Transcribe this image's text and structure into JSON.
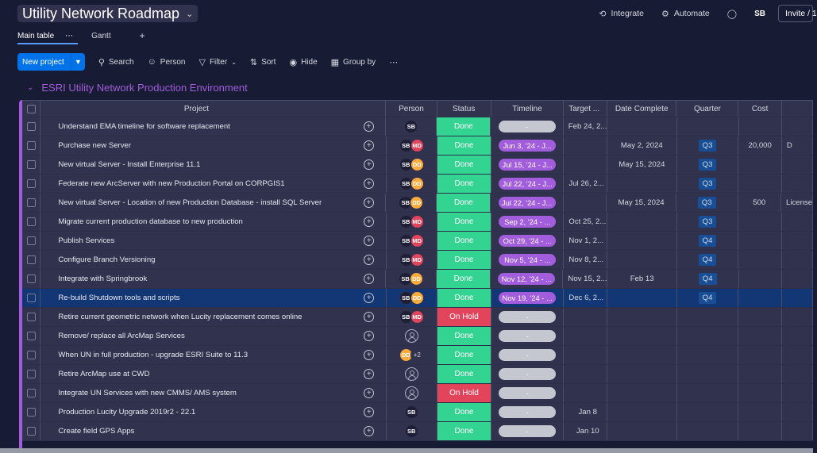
{
  "header": {
    "title": "Utility Network Roadmap",
    "integrate": "Integrate",
    "automate": "Automate",
    "user_initials": "SB",
    "invite": "Invite / 1"
  },
  "tabs": [
    {
      "label": "Main table"
    },
    {
      "label": "Gantt"
    }
  ],
  "toolbar": {
    "new_project": "New project",
    "search": "Search",
    "person": "Person",
    "filter": "Filter",
    "sort": "Sort",
    "hide": "Hide",
    "group_by": "Group by"
  },
  "group": {
    "title": "ESRI Utility Network Production Environment",
    "color": "#a25ddc"
  },
  "columns": {
    "project": "Project",
    "person": "Person",
    "status": "Status",
    "timeline": "Timeline",
    "target": "Target ...",
    "date_complete": "Date Complete",
    "quarter": "Quarter",
    "cost": "Cost"
  },
  "colors": {
    "done": "#33d391",
    "on_hold": "#e2445c",
    "timeline": "#a25ddc",
    "accent": "#0073ea"
  },
  "rows": [
    {
      "project": "Understand EMA timeline for software replacement",
      "people": [
        "SB"
      ],
      "status": "Done",
      "timeline": "-",
      "target": "Feb 24, 2...",
      "date_complete": "",
      "quarter": "",
      "cost": "",
      "extra": ""
    },
    {
      "project": "Purchase new Server",
      "people": [
        "SB",
        "MD"
      ],
      "status": "Done",
      "timeline": "Jun 3, '24 - J...",
      "target": "",
      "date_complete": "May 2, 2024",
      "quarter": "Q3",
      "cost": "20,000",
      "extra": "D"
    },
    {
      "project": "New virtual Server - Install Enterprise 11.1",
      "people": [
        "SB",
        "DD"
      ],
      "status": "Done",
      "timeline": "Jul 15, '24 - J...",
      "target": "",
      "date_complete": "May 15, 2024",
      "quarter": "Q3",
      "cost": "",
      "extra": ""
    },
    {
      "project": "Federate new ArcServer with new Production Portal on CORPGIS1",
      "people": [
        "SB",
        "DD"
      ],
      "status": "Done",
      "timeline": "Jul 22, '24 - J...",
      "target": "Jul 26, 2...",
      "date_complete": "",
      "quarter": "Q3",
      "cost": "",
      "extra": ""
    },
    {
      "project": "New virtual Server - Location of new Production Database - install SQL Server",
      "people": [
        "SB",
        "DD"
      ],
      "status": "Done",
      "timeline": "Jul 22, '24 - J...",
      "target": "",
      "date_complete": "May 15, 2024",
      "quarter": "Q3",
      "cost": "500",
      "extra": "License"
    },
    {
      "project": "Migrate current production database to new production",
      "people": [
        "SB",
        "MD"
      ],
      "status": "Done",
      "timeline": "Sep 2, '24 - ...",
      "target": "Oct 25, 2...",
      "date_complete": "",
      "quarter": "Q3",
      "cost": "",
      "extra": ""
    },
    {
      "project": "Publish Services",
      "people": [
        "SB",
        "MD"
      ],
      "status": "Done",
      "timeline": "Oct 29, '24 - ...",
      "target": "Nov 1, 2...",
      "date_complete": "",
      "quarter": "Q4",
      "cost": "",
      "extra": ""
    },
    {
      "project": "Configure Branch Versioning",
      "people": [
        "SB",
        "MD"
      ],
      "status": "Done",
      "timeline": "Nov 5, '24 - ...",
      "target": "Nov 8, 2...",
      "date_complete": "",
      "quarter": "Q4",
      "cost": "",
      "extra": ""
    },
    {
      "project": "Integrate with Springbrook",
      "people": [
        "SB",
        "DD"
      ],
      "status": "Done",
      "timeline": "Nov 12, '24 - ...",
      "target": "Nov 15, 2...",
      "date_complete": "Feb 13",
      "quarter": "Q4",
      "cost": "",
      "extra": ""
    },
    {
      "project": "Re-build Shutdown tools and scripts",
      "people": [
        "SB",
        "DD"
      ],
      "status": "Done",
      "timeline": "Nov 19, '24 - ...",
      "target": "Dec 6, 2...",
      "date_complete": "",
      "quarter": "Q4",
      "cost": "",
      "extra": "",
      "selected": true
    },
    {
      "project": "Retire current geometric network when Lucity replacement comes online",
      "people": [
        "SB",
        "MD"
      ],
      "status": "On Hold",
      "timeline": "-",
      "target": "",
      "date_complete": "",
      "quarter": "",
      "cost": "",
      "extra": ""
    },
    {
      "project": "Remove/ replace all ArcMap Services",
      "people": [],
      "status": "Done",
      "timeline": "-",
      "target": "",
      "date_complete": "",
      "quarter": "",
      "cost": "",
      "extra": ""
    },
    {
      "project": "When UN in full production - upgrade ESRI Suite to 11.3",
      "people": [
        "DD",
        "+2"
      ],
      "status": "Done",
      "timeline": "-",
      "target": "",
      "date_complete": "",
      "quarter": "",
      "cost": "",
      "extra": ""
    },
    {
      "project": "Retire ArcMap use at CWD",
      "people": [],
      "status": "Done",
      "timeline": "-",
      "target": "",
      "date_complete": "",
      "quarter": "",
      "cost": "",
      "extra": ""
    },
    {
      "project": "Integrate UN Services with new CMMS/ AMS system",
      "people": [],
      "status": "On Hold",
      "timeline": "-",
      "target": "",
      "date_complete": "",
      "quarter": "",
      "cost": "",
      "extra": ""
    },
    {
      "project": "Production Lucity Upgrade 2019r2 - 22.1",
      "people": [
        "SB"
      ],
      "status": "Done",
      "timeline": "-",
      "target": "Jan 8",
      "date_complete": "",
      "quarter": "",
      "cost": "",
      "extra": ""
    },
    {
      "project": "Create field GPS Apps",
      "people": [
        "SB"
      ],
      "status": "Done",
      "timeline": "-",
      "target": "Jan 10",
      "date_complete": "",
      "quarter": "",
      "cost": "",
      "extra": ""
    }
  ]
}
